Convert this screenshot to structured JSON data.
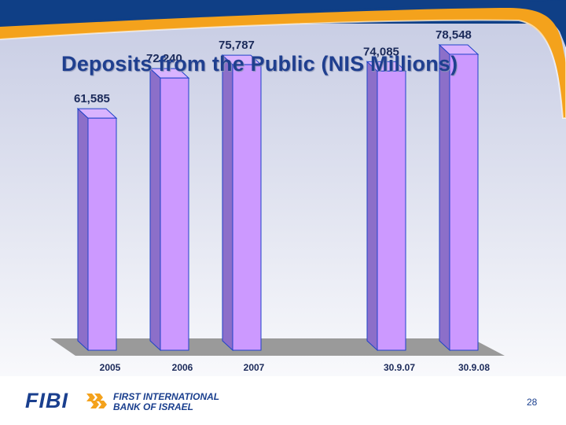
{
  "slide": {
    "title": "Deposits from the Public (NIS Millions)",
    "page_number": "28"
  },
  "logo": {
    "mark_text": "FIBI",
    "line1": "FIRST INTERNATIONAL",
    "line2": "BANK OF ISRAEL"
  },
  "colors": {
    "bar_front": "#cc99ff",
    "bar_side": "#8c6fc9",
    "bar_top": "#d9b3ff",
    "bar_outline": "#1f43c8",
    "floor": "#9a9a9a",
    "title": "#1f3f8f",
    "accent_orange": "#f4a21c",
    "header_blue": "#0f3f86"
  },
  "chart_data": {
    "type": "bar",
    "title": "Deposits from the Public (NIS Millions)",
    "categories": [
      "2005",
      "2006",
      "2007",
      "30.9.07",
      "30.9.08"
    ],
    "values": [
      61585,
      72240,
      75787,
      74085,
      78548
    ],
    "value_labels": [
      "61,585",
      "72,240",
      "75,787",
      "74,085",
      "78,548"
    ],
    "ylim": [
      0,
      80000
    ],
    "grid": false,
    "legend": "none",
    "bar_style": "3d"
  }
}
